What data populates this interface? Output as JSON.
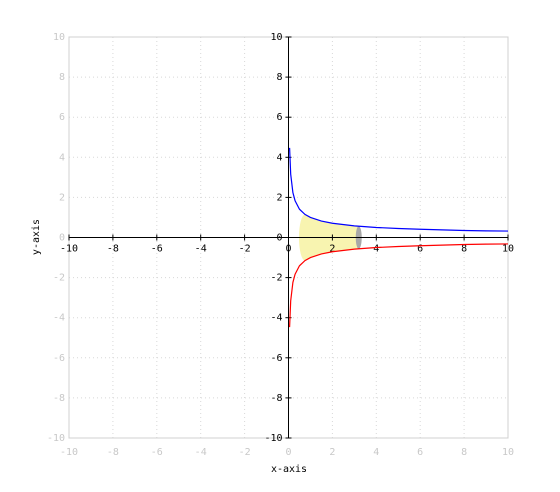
{
  "chart_data": {
    "type": "line",
    "x_label": "x-axis",
    "y_label": "y-axis",
    "x": [
      0.05,
      0.1,
      0.2,
      0.3,
      0.5,
      0.75,
      1,
      1.5,
      2,
      3,
      4,
      5,
      6,
      7,
      8,
      9,
      10
    ],
    "series": [
      {
        "color": "#0000ff",
        "values": [
          4.47,
          3.16,
          2.24,
          1.83,
          1.41,
          1.15,
          1,
          0.82,
          0.71,
          0.58,
          0.5,
          0.45,
          0.41,
          0.38,
          0.35,
          0.33,
          0.32
        ]
      },
      {
        "color": "#ff0000",
        "values": [
          -4.47,
          -3.16,
          -2.24,
          -1.83,
          -1.41,
          -1.15,
          -1,
          -0.82,
          -0.71,
          -0.58,
          -0.5,
          -0.45,
          -0.41,
          -0.38,
          -0.35,
          -0.33,
          -0.32
        ]
      }
    ],
    "shaded_interval": [
      0.75,
      3.2
    ],
    "xlim": [
      -10,
      10
    ],
    "ylim": [
      -10,
      10
    ],
    "xticks": [
      -10,
      -8,
      -6,
      -4,
      -2,
      0,
      2,
      4,
      6,
      8,
      10
    ],
    "yticks": [
      -10,
      -8,
      -6,
      -4,
      -2,
      0,
      2,
      4,
      6,
      8,
      10
    ],
    "grid": true
  }
}
